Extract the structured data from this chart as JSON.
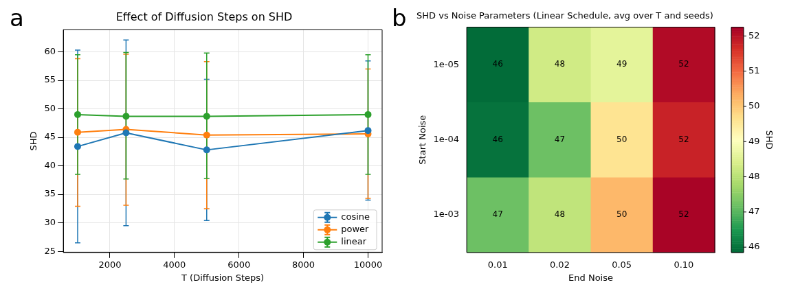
{
  "chart_data": [
    {
      "type": "line",
      "title": "Effect of Diffusion Steps on SHD",
      "xlabel": "T (Diffusion Steps)",
      "ylabel": "SHD",
      "annotations": [
        "a"
      ],
      "x": [
        1000,
        2500,
        5000,
        10000
      ],
      "xlim": [
        556,
        10437
      ],
      "xticks": [
        2000,
        4000,
        6000,
        8000,
        10000
      ],
      "ylim": [
        24.8,
        63.9
      ],
      "yticks": [
        25,
        30,
        35,
        40,
        45,
        50,
        55,
        60
      ],
      "grid": true,
      "legend": "bottom right",
      "marker": "circle",
      "line_style": "solid",
      "series": [
        {
          "name": "cosine",
          "color": "#1f77b4",
          "values": [
            43.4,
            45.8,
            42.8,
            46.2
          ],
          "errors": [
            [
              26.5,
              60.3
            ],
            [
              29.5,
              62.1
            ],
            [
              30.4,
              55.2
            ],
            [
              34.0,
              58.4
            ]
          ]
        },
        {
          "name": "power",
          "color": "#ff7f0e",
          "values": [
            45.9,
            46.4,
            45.4,
            45.6
          ],
          "errors": [
            [
              32.9,
              58.8
            ],
            [
              33.1,
              59.6
            ],
            [
              32.5,
              58.3
            ],
            [
              34.3,
              57.0
            ]
          ]
        },
        {
          "name": "linear",
          "color": "#2ca02c",
          "values": [
            49.0,
            48.7,
            48.7,
            49.0
          ],
          "errors": [
            [
              38.5,
              59.5
            ],
            [
              37.7,
              59.9
            ],
            [
              37.8,
              59.8
            ],
            [
              38.5,
              59.5
            ]
          ]
        }
      ]
    },
    {
      "type": "heatmap",
      "title": "SHD vs Noise Parameters (Linear Schedule, avg over T and seeds)",
      "xlabel": "End Noise",
      "ylabel": "Start Noise",
      "clabel": "SHD",
      "annotations": [
        "b"
      ],
      "categories": [
        "0.01",
        "0.02",
        "0.05",
        "0.10"
      ],
      "y_categories": [
        "1e-05",
        "1e-04",
        "1e-03"
      ],
      "cells": [
        [
          45.9,
          48.3,
          48.6,
          52.1
        ],
        [
          46.0,
          47.2,
          49.6,
          51.8
        ],
        [
          47.2,
          48.1,
          50.2,
          52.2
        ]
      ],
      "cell_labels": [
        [
          "46",
          "48",
          "49",
          "52"
        ],
        [
          "46",
          "47",
          "50",
          "52"
        ],
        [
          "47",
          "48",
          "50",
          "52"
        ]
      ],
      "clim": [
        45.85,
        52.25
      ],
      "cticks": [
        46,
        47,
        48,
        49,
        50,
        51,
        52
      ]
    }
  ]
}
